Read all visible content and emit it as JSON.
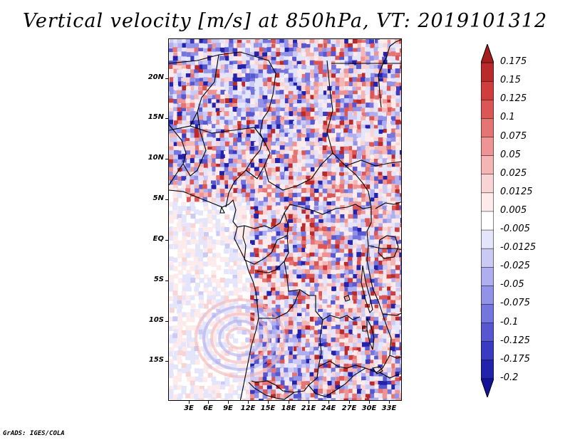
{
  "title": "Vertical velocity [m/s] at 850hPa, VT: 2019101312",
  "credit": "GrADS: IGES/COLA",
  "map": {
    "variable": "Vertical velocity",
    "units": "m/s",
    "level": "850hPa",
    "valid_time": "2019101312",
    "lon_ticks": [
      "3E",
      "6E",
      "9E",
      "12E",
      "15E",
      "18E",
      "21E",
      "24E",
      "27E",
      "30E",
      "33E"
    ],
    "lat_ticks": [
      "20N",
      "15N",
      "10N",
      "5N",
      "EQ",
      "5S",
      "10S",
      "15S"
    ]
  },
  "colorbar": {
    "labels": [
      "0.175",
      "0.15",
      "0.125",
      "0.1",
      "0.075",
      "0.05",
      "0.025",
      "0.0125",
      "0.005",
      "-0.005",
      "-0.0125",
      "-0.025",
      "-0.05",
      "-0.075",
      "-0.1",
      "-0.125",
      "-0.175",
      "-0.2"
    ],
    "colors": [
      "#a51d1d",
      "#bb2a2a",
      "#cf3d3d",
      "#dc5656",
      "#e57474",
      "#ee9494",
      "#f4b5b5",
      "#f9d4d4",
      "#fdebeb",
      "#ffffff",
      "#e4e4fb",
      "#cacaf5",
      "#aeaef0",
      "#9292e8",
      "#7575de",
      "#5757d1",
      "#3a3ac2",
      "#2222ad",
      "#13139a"
    ]
  }
}
